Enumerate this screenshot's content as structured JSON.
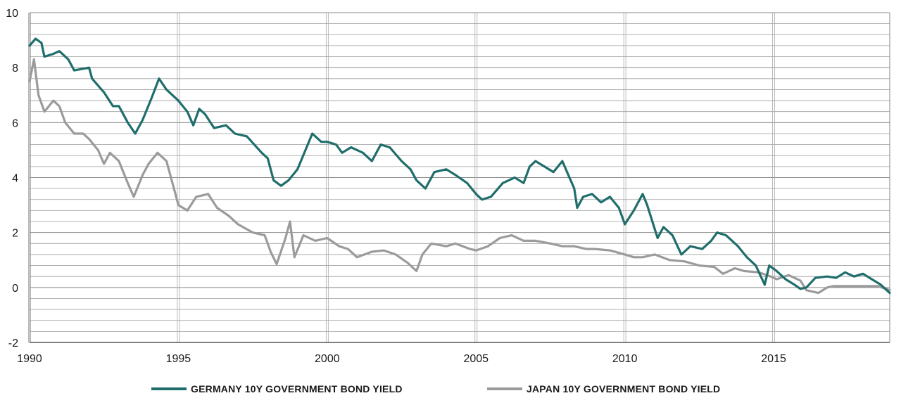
{
  "chart_data": {
    "type": "line",
    "title": "",
    "xlabel": "",
    "ylabel": "",
    "xlim": [
      1990,
      2018.9
    ],
    "ylim": [
      -2,
      10
    ],
    "y_ticks": [
      "10",
      "8",
      "6",
      "4",
      "2",
      "0",
      "-2"
    ],
    "x_ticks": [
      "1990",
      "1995",
      "2000",
      "2005",
      "2010",
      "2015"
    ],
    "grid": "horizontal and vertical gridlines",
    "legend_position": "bottom",
    "series": [
      {
        "name": "GERMANY 10Y GOVERNMENT BOND YIELD",
        "color": "#1f6e6b",
        "points": [
          [
            1990.0,
            8.8
          ],
          [
            1990.2,
            9.05
          ],
          [
            1990.4,
            8.9
          ],
          [
            1990.5,
            8.4
          ],
          [
            1990.8,
            8.5
          ],
          [
            1991.0,
            8.6
          ],
          [
            1991.3,
            8.3
          ],
          [
            1991.5,
            7.9
          ],
          [
            1992.0,
            8.0
          ],
          [
            1992.1,
            7.6
          ],
          [
            1992.5,
            7.1
          ],
          [
            1992.8,
            6.6
          ],
          [
            1993.0,
            6.6
          ],
          [
            1993.3,
            6.0
          ],
          [
            1993.55,
            5.6
          ],
          [
            1993.8,
            6.1
          ],
          [
            1994.1,
            6.9
          ],
          [
            1994.35,
            7.6
          ],
          [
            1994.6,
            7.2
          ],
          [
            1995.0,
            6.8
          ],
          [
            1995.3,
            6.4
          ],
          [
            1995.5,
            5.9
          ],
          [
            1995.7,
            6.5
          ],
          [
            1995.9,
            6.3
          ],
          [
            1996.2,
            5.8
          ],
          [
            1996.6,
            5.9
          ],
          [
            1996.9,
            5.6
          ],
          [
            1997.3,
            5.5
          ],
          [
            1997.8,
            4.9
          ],
          [
            1998.0,
            4.7
          ],
          [
            1998.2,
            3.9
          ],
          [
            1998.45,
            3.7
          ],
          [
            1998.7,
            3.9
          ],
          [
            1999.0,
            4.3
          ],
          [
            1999.5,
            5.6
          ],
          [
            1999.8,
            5.3
          ],
          [
            2000.0,
            5.3
          ],
          [
            2000.3,
            5.2
          ],
          [
            2000.5,
            4.9
          ],
          [
            2000.8,
            5.1
          ],
          [
            2001.2,
            4.9
          ],
          [
            2001.5,
            4.6
          ],
          [
            2001.8,
            5.2
          ],
          [
            2002.1,
            5.1
          ],
          [
            2002.5,
            4.6
          ],
          [
            2002.8,
            4.3
          ],
          [
            2003.0,
            3.9
          ],
          [
            2003.3,
            3.6
          ],
          [
            2003.6,
            4.2
          ],
          [
            2004.0,
            4.3
          ],
          [
            2004.3,
            4.1
          ],
          [
            2004.7,
            3.8
          ],
          [
            2005.0,
            3.4
          ],
          [
            2005.2,
            3.2
          ],
          [
            2005.5,
            3.3
          ],
          [
            2005.9,
            3.8
          ],
          [
            2006.3,
            4.0
          ],
          [
            2006.6,
            3.8
          ],
          [
            2006.8,
            4.4
          ],
          [
            2007.0,
            4.6
          ],
          [
            2007.3,
            4.4
          ],
          [
            2007.6,
            4.2
          ],
          [
            2007.9,
            4.6
          ],
          [
            2008.1,
            4.1
          ],
          [
            2008.3,
            3.6
          ],
          [
            2008.4,
            2.9
          ],
          [
            2008.6,
            3.3
          ],
          [
            2008.9,
            3.4
          ],
          [
            2009.2,
            3.1
          ],
          [
            2009.5,
            3.3
          ],
          [
            2009.8,
            2.9
          ],
          [
            2010.0,
            2.3
          ],
          [
            2010.3,
            2.8
          ],
          [
            2010.6,
            3.4
          ],
          [
            2010.75,
            3.0
          ],
          [
            2011.1,
            1.8
          ],
          [
            2011.3,
            2.2
          ],
          [
            2011.6,
            1.9
          ],
          [
            2011.9,
            1.2
          ],
          [
            2012.2,
            1.5
          ],
          [
            2012.6,
            1.4
          ],
          [
            2012.9,
            1.7
          ],
          [
            2013.1,
            2.0
          ],
          [
            2013.4,
            1.9
          ],
          [
            2013.8,
            1.5
          ],
          [
            2014.1,
            1.1
          ],
          [
            2014.4,
            0.8
          ],
          [
            2014.7,
            0.1
          ],
          [
            2014.85,
            0.8
          ],
          [
            2015.1,
            0.6
          ],
          [
            2015.4,
            0.3
          ],
          [
            2015.7,
            0.1
          ],
          [
            2015.9,
            -0.05
          ],
          [
            2016.1,
            0.0
          ],
          [
            2016.4,
            0.35
          ],
          [
            2016.8,
            0.4
          ],
          [
            2017.1,
            0.35
          ],
          [
            2017.4,
            0.55
          ],
          [
            2017.7,
            0.4
          ],
          [
            2018.0,
            0.5
          ],
          [
            2018.3,
            0.3
          ],
          [
            2018.6,
            0.1
          ],
          [
            2018.9,
            -0.2
          ]
        ]
      },
      {
        "name": "JAPAN 10Y GOVERNMENT BOND YIELD",
        "color": "#9b9b9b",
        "points": [
          [
            1990.0,
            7.5
          ],
          [
            1990.15,
            8.3
          ],
          [
            1990.3,
            7.0
          ],
          [
            1990.5,
            6.4
          ],
          [
            1990.8,
            6.8
          ],
          [
            1991.0,
            6.6
          ],
          [
            1991.2,
            6.0
          ],
          [
            1991.5,
            5.6
          ],
          [
            1991.8,
            5.6
          ],
          [
            1992.0,
            5.4
          ],
          [
            1992.3,
            5.0
          ],
          [
            1992.5,
            4.5
          ],
          [
            1992.7,
            4.9
          ],
          [
            1993.0,
            4.6
          ],
          [
            1993.3,
            3.8
          ],
          [
            1993.5,
            3.3
          ],
          [
            1993.8,
            4.1
          ],
          [
            1994.0,
            4.5
          ],
          [
            1994.3,
            4.9
          ],
          [
            1994.6,
            4.6
          ],
          [
            1994.8,
            3.8
          ],
          [
            1995.0,
            3.0
          ],
          [
            1995.3,
            2.8
          ],
          [
            1995.6,
            3.3
          ],
          [
            1996.0,
            3.4
          ],
          [
            1996.3,
            2.9
          ],
          [
            1996.7,
            2.6
          ],
          [
            1997.0,
            2.3
          ],
          [
            1997.5,
            2.0
          ],
          [
            1997.9,
            1.9
          ],
          [
            1998.1,
            1.3
          ],
          [
            1998.3,
            0.85
          ],
          [
            1998.6,
            1.8
          ],
          [
            1998.75,
            2.4
          ],
          [
            1998.9,
            1.1
          ],
          [
            1999.2,
            1.9
          ],
          [
            1999.6,
            1.7
          ],
          [
            2000.0,
            1.8
          ],
          [
            2000.4,
            1.5
          ],
          [
            2000.7,
            1.4
          ],
          [
            2001.0,
            1.1
          ],
          [
            2001.5,
            1.3
          ],
          [
            2001.9,
            1.35
          ],
          [
            2002.3,
            1.2
          ],
          [
            2002.7,
            0.9
          ],
          [
            2003.0,
            0.6
          ],
          [
            2003.2,
            1.2
          ],
          [
            2003.5,
            1.6
          ],
          [
            2004.0,
            1.5
          ],
          [
            2004.3,
            1.6
          ],
          [
            2004.8,
            1.4
          ],
          [
            2005.0,
            1.35
          ],
          [
            2005.4,
            1.5
          ],
          [
            2005.8,
            1.8
          ],
          [
            2006.2,
            1.9
          ],
          [
            2006.6,
            1.7
          ],
          [
            2007.0,
            1.7
          ],
          [
            2007.5,
            1.6
          ],
          [
            2007.9,
            1.5
          ],
          [
            2008.3,
            1.5
          ],
          [
            2008.7,
            1.4
          ],
          [
            2009.0,
            1.4
          ],
          [
            2009.5,
            1.35
          ],
          [
            2010.0,
            1.2
          ],
          [
            2010.3,
            1.1
          ],
          [
            2010.6,
            1.1
          ],
          [
            2011.0,
            1.2
          ],
          [
            2011.5,
            1.0
          ],
          [
            2012.0,
            0.95
          ],
          [
            2012.5,
            0.8
          ],
          [
            2013.0,
            0.75
          ],
          [
            2013.3,
            0.5
          ],
          [
            2013.7,
            0.7
          ],
          [
            2014.0,
            0.6
          ],
          [
            2014.5,
            0.55
          ],
          [
            2014.9,
            0.4
          ],
          [
            2015.1,
            0.3
          ],
          [
            2015.5,
            0.45
          ],
          [
            2015.9,
            0.25
          ],
          [
            2016.1,
            -0.1
          ],
          [
            2016.5,
            -0.2
          ],
          [
            2016.8,
            0.0
          ],
          [
            2017.0,
            0.05
          ],
          [
            2017.5,
            0.05
          ],
          [
            2018.0,
            0.05
          ],
          [
            2018.5,
            0.05
          ],
          [
            2018.9,
            -0.1
          ]
        ]
      }
    ]
  }
}
